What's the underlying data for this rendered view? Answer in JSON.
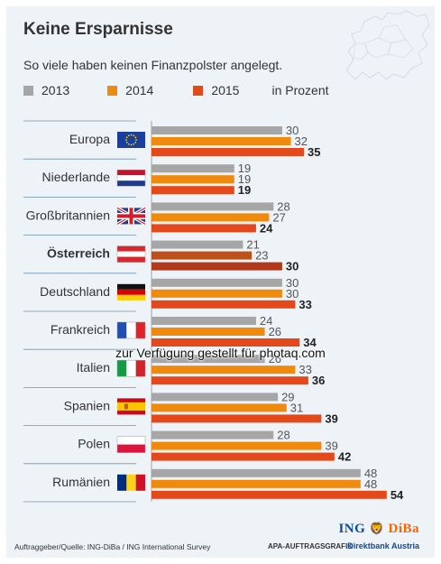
{
  "header": {
    "title": "Keine Ersparnisse",
    "subtitle": "So viele haben keinen Finanzpolster angelegt.",
    "unit": "in Prozent"
  },
  "colors": {
    "2013": "#a6a6a6",
    "2014": "#ef8a0d",
    "2015": "#e4491b",
    "highlight2014": "#c0501a",
    "highlight2015": "#b2391a"
  },
  "chart_data": {
    "type": "bar",
    "orientation": "horizontal",
    "title": "Keine Ersparnisse",
    "subtitle": "So viele haben keinen Finanzpolster angelegt.",
    "unit": "in Prozent",
    "categories": [
      "Europa",
      "Niederlande",
      "Großbritannien",
      "Österreich",
      "Deutschland",
      "Frankreich",
      "Italien",
      "Spanien",
      "Polen",
      "Rumänien"
    ],
    "flags": [
      "eu-flag-icon",
      "netherlands-flag-icon",
      "uk-flag-icon",
      "austria-flag-icon",
      "germany-flag-icon",
      "france-flag-icon",
      "italy-flag-icon",
      "spain-flag-icon",
      "poland-flag-icon",
      "romania-flag-icon"
    ],
    "highlight": "Österreich",
    "series": [
      {
        "name": "2013",
        "values": [
          30,
          19,
          28,
          21,
          30,
          24,
          26,
          29,
          28,
          48
        ]
      },
      {
        "name": "2014",
        "values": [
          32,
          19,
          27,
          23,
          30,
          26,
          33,
          31,
          39,
          48
        ]
      },
      {
        "name": "2015",
        "values": [
          35,
          19,
          24,
          30,
          33,
          34,
          36,
          39,
          42,
          54
        ]
      }
    ],
    "xlim": [
      0,
      54
    ],
    "legend": "top",
    "grid": false
  },
  "footer": {
    "source": "Auftraggeber/Quelle: ING-DiBa / ING International Survey",
    "agency": "APA-AUFTRAGSGRAFIK",
    "bank": "Direktbank Austria",
    "brand_ing": "ING",
    "brand_diba": "DiBa",
    "watermark": "zur Verfügung gestellt für photaq.com"
  }
}
